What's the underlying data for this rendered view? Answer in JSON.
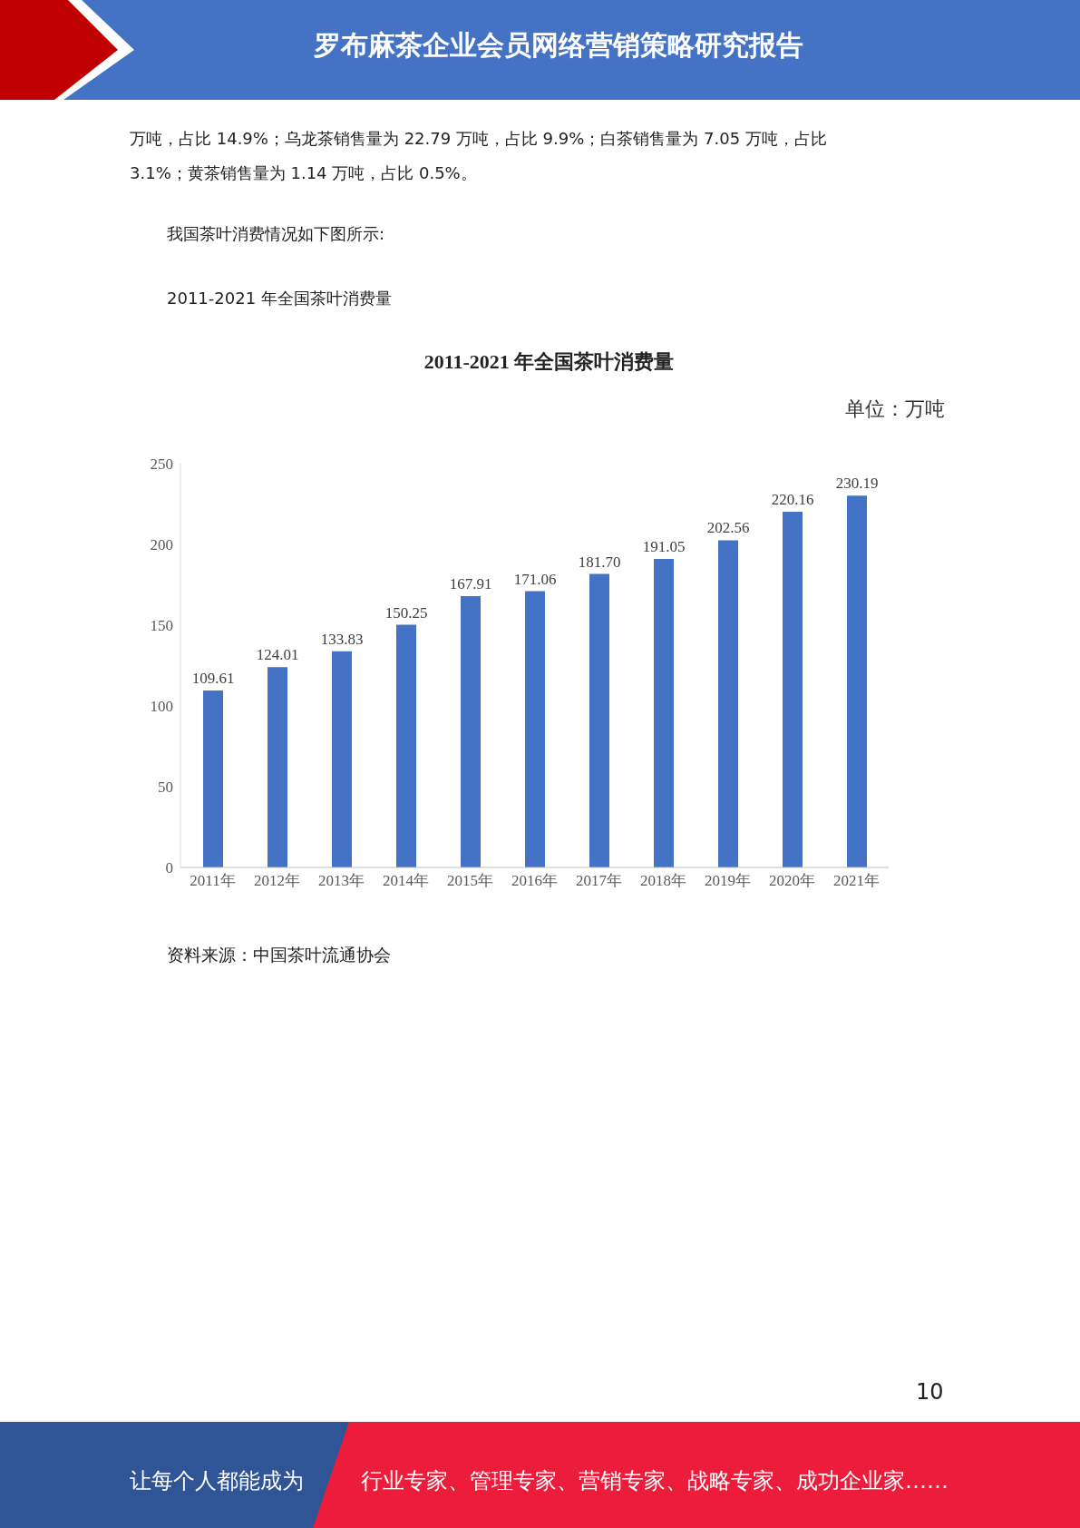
{
  "chart_data": {
    "type": "bar",
    "title": "2011-2021 年全国茶叶消费量",
    "ylabel": "单位：万吨",
    "categories": [
      "2011年",
      "2012年",
      "2013年",
      "2014年",
      "2015年",
      "2016年",
      "2017年",
      "2018年",
      "2019年",
      "2020年",
      "2021年"
    ],
    "values": [
      109.61,
      124.01,
      133.83,
      150.25,
      167.91,
      171.06,
      181.7,
      191.05,
      202.56,
      220.16,
      230.19
    ],
    "value_labels": [
      "109.61",
      "124.01",
      "133.83",
      "150.25",
      "167.91",
      "171.06",
      "181.70",
      "191.05",
      "202.56",
      "220.16",
      "230.19"
    ],
    "color": "#4472c4",
    "ylim": [
      0,
      250
    ],
    "yticks": [
      0,
      50,
      100,
      150,
      200,
      250
    ],
    "annotations": [
      "罗布麻茶企业会员网络营销策略研究报告",
      "万吨，占比 14.9%；乌龙茶销售量为 22.79 万吨，占比 9.9%；白茶销售量为 7.05 万吨，占比",
      "3.1%；黄茶销售量为 1.14 万吨，占比 0.5%。",
      "我国茶叶消费情况如下图所示:",
      "2011-2021 年全国茶叶消费量",
      "资料来源：中国茶叶流通协会",
      "10",
      "让每个人都能成为",
      "行业专家、管理专家、营销专家、战略专家、成功企业家……"
    ]
  }
}
